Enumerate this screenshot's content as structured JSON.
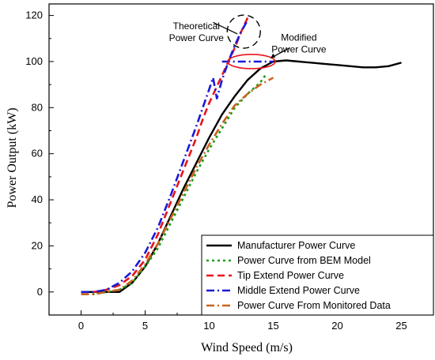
{
  "chart_data": {
    "type": "line",
    "title": "",
    "xlabel": "Wind Speed (m/s)",
    "ylabel": "Power Output (kW)",
    "xlim": [
      -2.5,
      27.5
    ],
    "ylim": [
      -10,
      125
    ],
    "xticks": [
      0,
      5,
      10,
      15,
      20,
      25
    ],
    "yticks": [
      0,
      20,
      40,
      60,
      80,
      100,
      120
    ],
    "grid": false,
    "legend_position": "bottom-right",
    "series": [
      {
        "name": "Manufacturer Power Curve",
        "color": "#000000",
        "dash": "solid",
        "x": [
          0,
          1,
          2,
          3,
          4,
          5,
          6,
          7,
          8,
          9,
          10,
          11,
          12,
          13,
          14,
          15,
          16,
          17,
          18,
          19,
          20,
          21,
          22,
          23,
          24,
          25
        ],
        "y": [
          0,
          0,
          0,
          0,
          4,
          11,
          21,
          33,
          45,
          56,
          67,
          77,
          85,
          92,
          97,
          100,
          100.5,
          100,
          99.5,
          99,
          98.5,
          98,
          97.5,
          97.5,
          98,
          99.5
        ]
      },
      {
        "name": "Power Curve from BEM Model",
        "color": "#1a9e1a",
        "dash": "dot",
        "x": [
          0,
          1,
          2,
          3,
          4,
          5,
          6,
          7,
          8,
          9,
          10,
          11,
          12,
          13,
          14,
          14.5
        ],
        "y": [
          -1,
          -1,
          0,
          1,
          4,
          11,
          19,
          30,
          41,
          52,
          62,
          71,
          80,
          86,
          91,
          95
        ]
      },
      {
        "name": "Tip Extend Power Curve",
        "color": "#e8141c",
        "dash": "dash",
        "x": [
          0,
          1,
          2,
          3,
          4,
          5,
          6,
          7,
          8,
          9,
          9.5,
          10,
          10.5,
          11,
          11.5,
          12,
          12.5,
          13
        ],
        "y": [
          0,
          0,
          1,
          3,
          7,
          14,
          25,
          39,
          53,
          67,
          75,
          82,
          88,
          94,
          100,
          106,
          113,
          119
        ]
      },
      {
        "name": "Middle Extend Power Curve",
        "color": "#1a1ad8",
        "dash": "dashdot",
        "x": [
          0,
          1,
          2,
          3,
          4,
          5,
          6,
          7,
          8,
          9,
          9.5,
          10,
          10.3,
          10.6,
          11,
          11.5,
          12,
          12.5,
          13
        ],
        "y": [
          0,
          0,
          1,
          4,
          9,
          17,
          28,
          42,
          57,
          72,
          80,
          88,
          93,
          84,
          92,
          100,
          107,
          113,
          118
        ]
      },
      {
        "name": "Power Curve From Monitored Data",
        "color": "#c8641e",
        "dash": "dashdot",
        "x": [
          0,
          1,
          2,
          3,
          4,
          5,
          6,
          7,
          8,
          9,
          10,
          11,
          12,
          13,
          14,
          15
        ],
        "y": [
          -1,
          -1,
          0,
          1,
          5,
          12,
          21,
          32,
          43,
          54,
          64,
          73,
          81,
          86,
          90,
          93
        ]
      },
      {
        "name": "",
        "color": "#1a1ad8",
        "dash": "dashdot",
        "legend": false,
        "x": [
          11,
          12,
          13,
          14,
          15
        ],
        "y": [
          100,
          100,
          100,
          100,
          100
        ]
      }
    ],
    "annotations": [
      {
        "text": [
          "Theoretical",
          "Power Curve"
        ],
        "x": 9,
        "y": 114
      },
      {
        "text": [
          "Modified",
          "Power Curve"
        ],
        "x": 17,
        "y": 109
      }
    ]
  }
}
